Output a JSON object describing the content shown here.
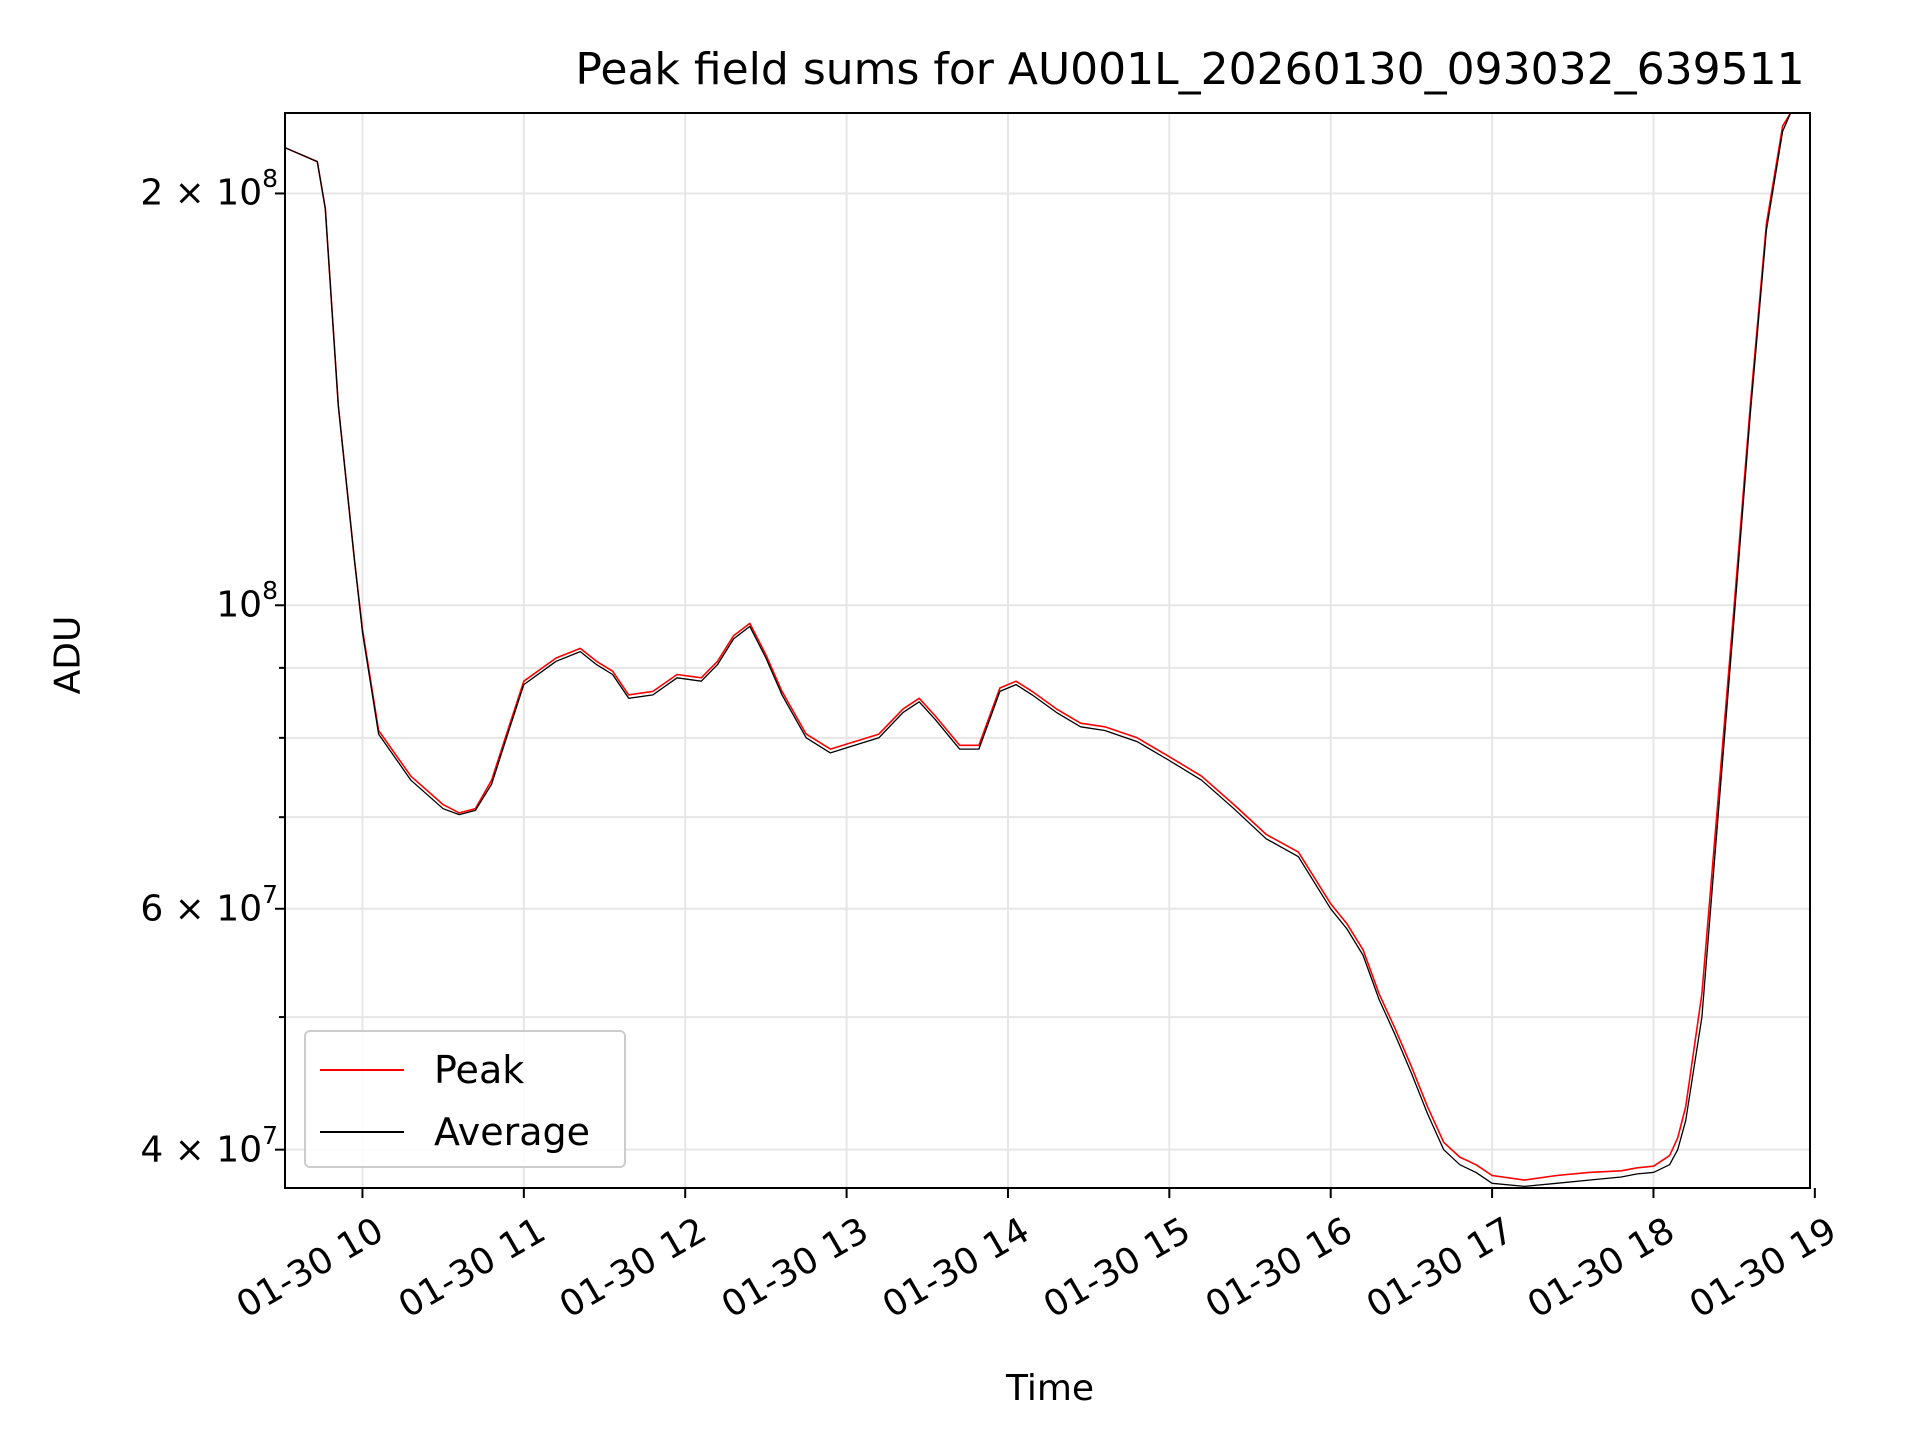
{
  "chart_data": {
    "type": "line",
    "title": "Peak field sums for AU001L_20260130_093032_639511",
    "xlabel": "Time",
    "ylabel": "ADU",
    "yscale": "log",
    "grid": true,
    "legend_position": "lower-left",
    "x_unit": "hours",
    "xlim": [
      9.52,
      18.97
    ],
    "ylim": [
      37500000,
      229000000
    ],
    "x_ticks": [
      {
        "value": 10,
        "label": "01-30 10"
      },
      {
        "value": 11,
        "label": "01-30 11"
      },
      {
        "value": 12,
        "label": "01-30 12"
      },
      {
        "value": 13,
        "label": "01-30 13"
      },
      {
        "value": 14,
        "label": "01-30 14"
      },
      {
        "value": 15,
        "label": "01-30 15"
      },
      {
        "value": 16,
        "label": "01-30 16"
      },
      {
        "value": 17,
        "label": "01-30 17"
      },
      {
        "value": 18,
        "label": "01-30 18"
      },
      {
        "value": 19,
        "label": "01-30 19"
      }
    ],
    "y_ticks": [
      {
        "value": 40000000,
        "mantissa": "4",
        "exponent": "7"
      },
      {
        "value": 60000000,
        "mantissa": "6",
        "exponent": "7"
      },
      {
        "value": 100000000,
        "mantissa": "",
        "exponent": "8"
      },
      {
        "value": 200000000,
        "mantissa": "2",
        "exponent": "8"
      }
    ],
    "series": [
      {
        "name": "Peak",
        "color": "#ff0000",
        "x": [
          9.52,
          9.72,
          9.77,
          9.85,
          9.95,
          10.0,
          10.1,
          10.3,
          10.5,
          10.6,
          10.7,
          10.8,
          10.9,
          11.0,
          11.2,
          11.35,
          11.45,
          11.55,
          11.65,
          11.8,
          11.95,
          12.1,
          12.2,
          12.3,
          12.4,
          12.5,
          12.6,
          12.75,
          12.9,
          13.05,
          13.2,
          13.35,
          13.45,
          13.55,
          13.7,
          13.82,
          13.95,
          14.05,
          14.15,
          14.3,
          14.45,
          14.6,
          14.8,
          15.0,
          15.2,
          15.4,
          15.6,
          15.8,
          16.0,
          16.1,
          16.2,
          16.3,
          16.4,
          16.5,
          16.6,
          16.7,
          16.8,
          16.9,
          17.0,
          17.2,
          17.4,
          17.6,
          17.8,
          17.9,
          18.0,
          18.1,
          18.15,
          18.2,
          18.3,
          18.4,
          18.5,
          18.6,
          18.7,
          18.8,
          18.85,
          18.97
        ],
        "y": [
          216000000,
          211000000,
          195000000,
          140000000,
          108000000,
          96000000,
          81000000,
          75000000,
          71500000,
          70500000,
          71000000,
          74500000,
          81000000,
          88000000,
          91500000,
          93000000,
          91000000,
          89500000,
          86000000,
          86500000,
          89000000,
          88500000,
          91000000,
          95000000,
          97000000,
          92000000,
          86500000,
          80500000,
          78500000,
          79500000,
          80500000,
          84000000,
          85500000,
          83000000,
          79000000,
          79000000,
          87000000,
          88000000,
          86500000,
          84000000,
          82000000,
          81500000,
          80000000,
          77500000,
          75000000,
          71500000,
          68000000,
          66000000,
          60500000,
          58500000,
          56000000,
          52000000,
          49000000,
          46000000,
          43000000,
          40500000,
          39500000,
          39000000,
          38300000,
          38000000,
          38300000,
          38500000,
          38600000,
          38800000,
          38900000,
          39600000,
          40800000,
          43000000,
          52000000,
          72000000,
          100000000,
          140000000,
          190000000,
          224000000,
          229000000,
          229000000
        ]
      },
      {
        "name": "Average",
        "color": "#000000",
        "x": [
          9.52,
          9.72,
          9.77,
          9.85,
          9.95,
          10.0,
          10.1,
          10.3,
          10.5,
          10.6,
          10.7,
          10.8,
          10.9,
          11.0,
          11.2,
          11.35,
          11.45,
          11.55,
          11.65,
          11.8,
          11.95,
          12.1,
          12.2,
          12.3,
          12.4,
          12.5,
          12.6,
          12.75,
          12.9,
          13.05,
          13.2,
          13.35,
          13.45,
          13.55,
          13.7,
          13.82,
          13.95,
          14.05,
          14.15,
          14.3,
          14.45,
          14.6,
          14.8,
          15.0,
          15.2,
          15.4,
          15.6,
          15.8,
          16.0,
          16.1,
          16.2,
          16.3,
          16.4,
          16.5,
          16.6,
          16.7,
          16.8,
          16.9,
          17.0,
          17.2,
          17.4,
          17.6,
          17.8,
          17.9,
          18.0,
          18.1,
          18.15,
          18.2,
          18.3,
          18.4,
          18.5,
          18.6,
          18.7,
          18.8,
          18.85,
          18.97
        ],
        "y": [
          216000000,
          211000000,
          195000000,
          140000000,
          108000000,
          95500000,
          80500000,
          74500000,
          71000000,
          70300000,
          70800000,
          74000000,
          80500000,
          87500000,
          91000000,
          92500000,
          90500000,
          89000000,
          85500000,
          86000000,
          88500000,
          88000000,
          90500000,
          94500000,
          96500000,
          91500000,
          86000000,
          80000000,
          78000000,
          79000000,
          80000000,
          83500000,
          85000000,
          82500000,
          78500000,
          78500000,
          86500000,
          87500000,
          86000000,
          83500000,
          81500000,
          81000000,
          79500000,
          77000000,
          74500000,
          71000000,
          67500000,
          65500000,
          60000000,
          58000000,
          55500000,
          51500000,
          48500000,
          45500000,
          42500000,
          40000000,
          39000000,
          38500000,
          37800000,
          37600000,
          37800000,
          38000000,
          38200000,
          38400000,
          38500000,
          39000000,
          40000000,
          42000000,
          50000000,
          70000000,
          98000000,
          138000000,
          188000000,
          222000000,
          229000000,
          229000000
        ]
      }
    ]
  }
}
